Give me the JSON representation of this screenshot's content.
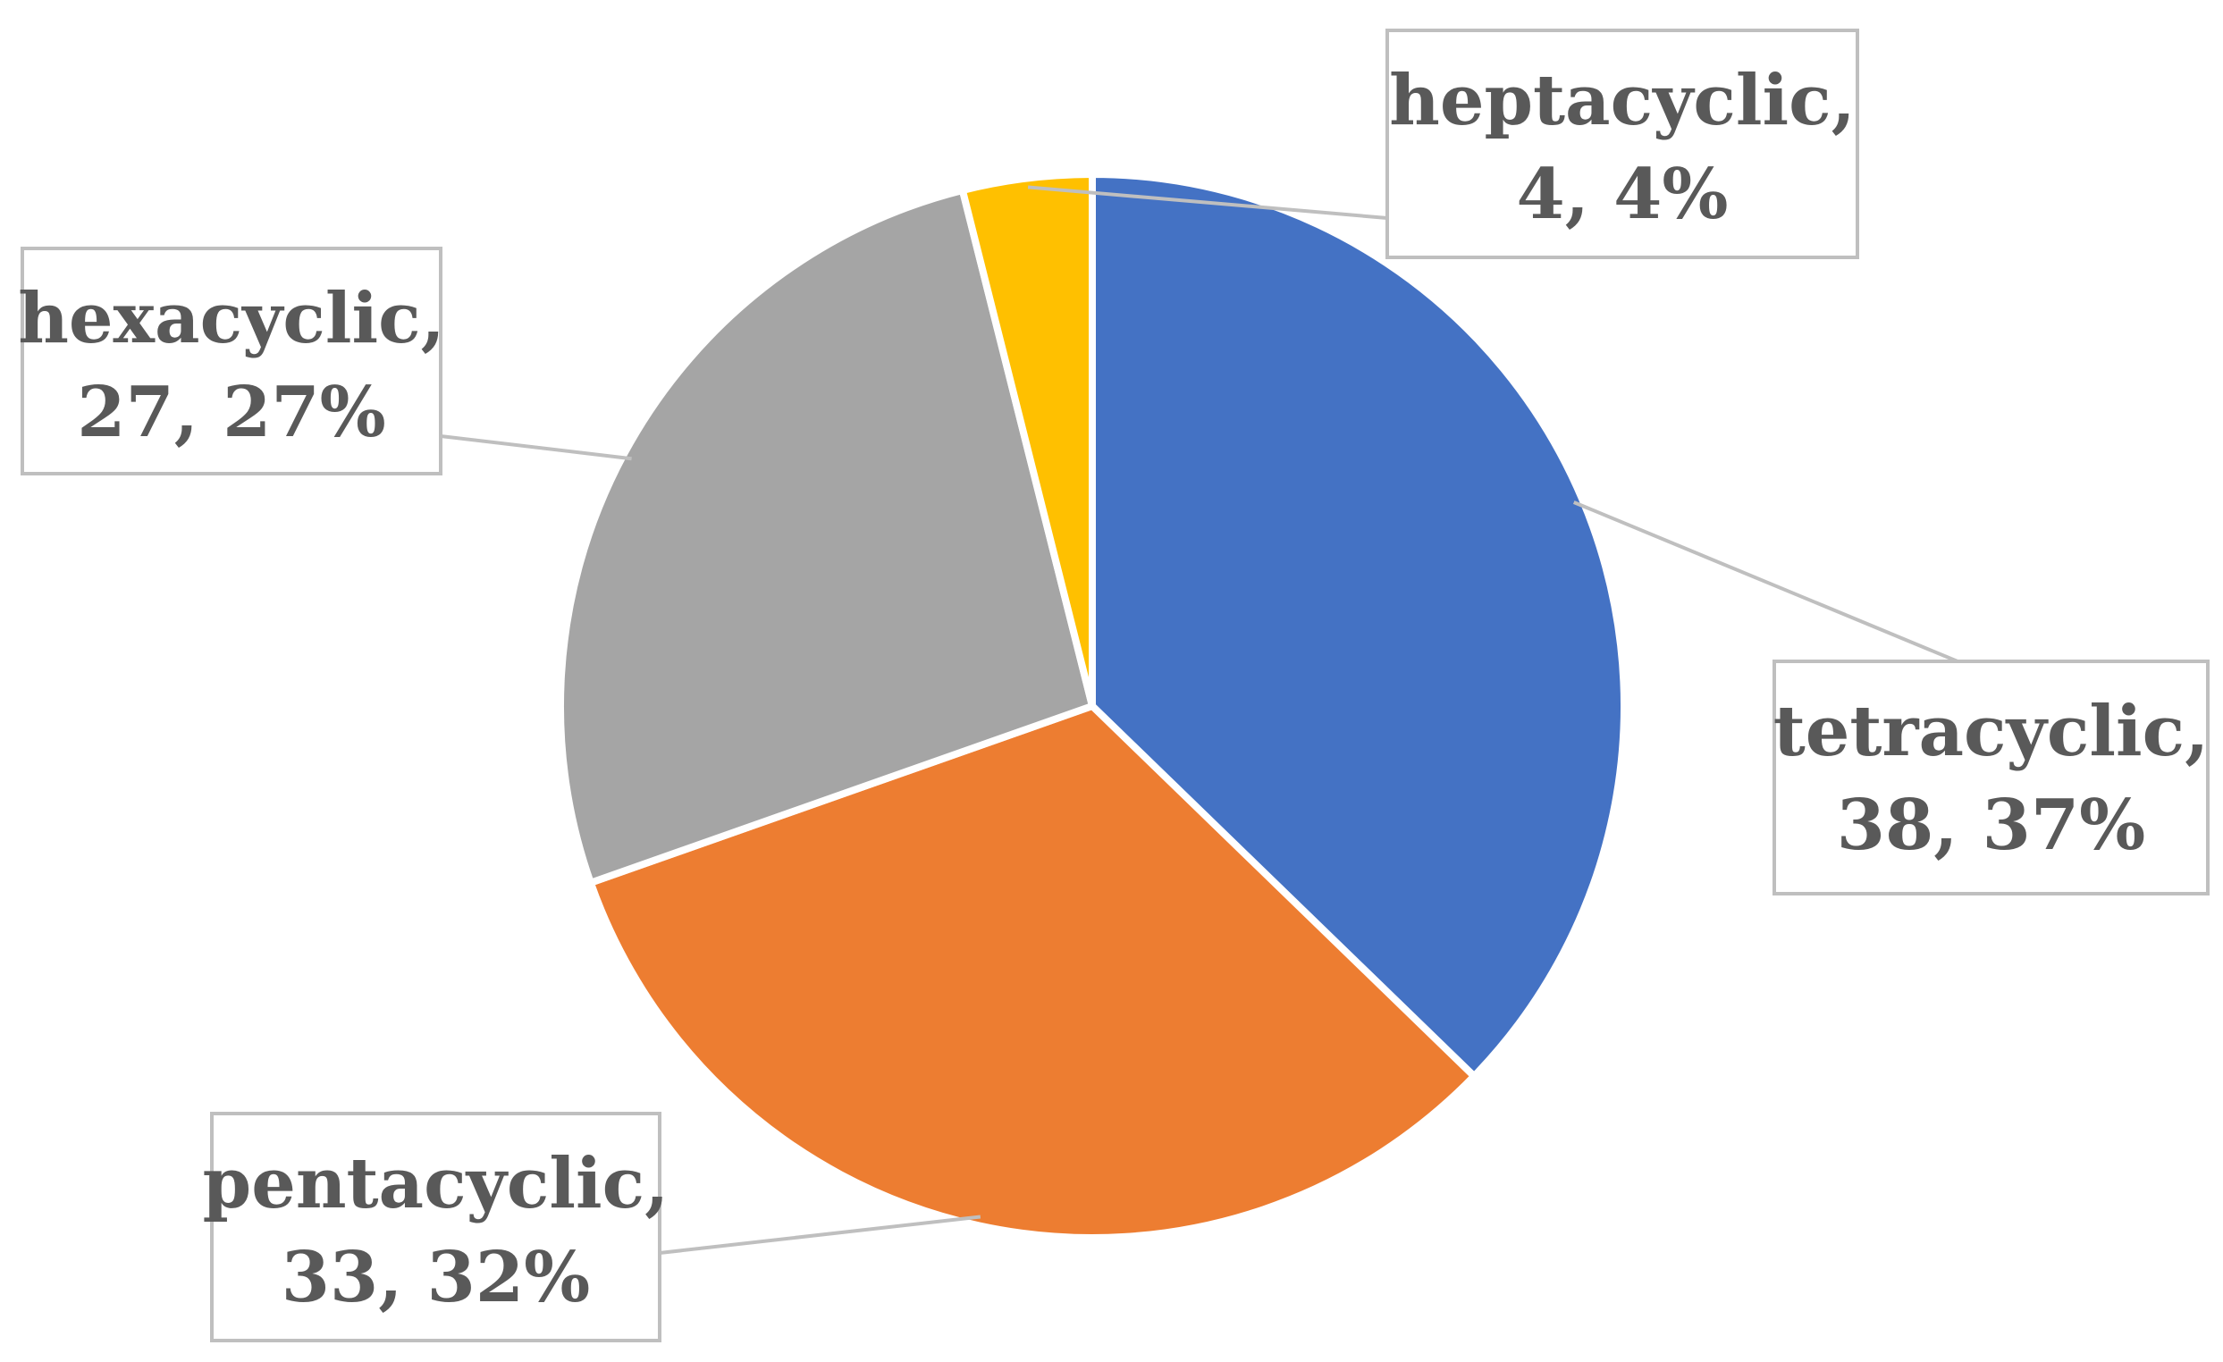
{
  "chart_data": {
    "type": "pie",
    "title": "",
    "slices": [
      {
        "name": "tetracyclic",
        "value": 38,
        "percent": "37%",
        "color": "#4472C4",
        "label_line1": "tetracyclic,",
        "label_line2": "38, 37%"
      },
      {
        "name": "pentacyclic",
        "value": 33,
        "percent": "32%",
        "color": "#ED7D31",
        "label_line1": "pentacyclic,",
        "label_line2": "33, 32%"
      },
      {
        "name": "hexacyclic",
        "value": 27,
        "percent": "27%",
        "color": "#A5A5A5",
        "label_line1": "hexacyclic,",
        "label_line2": "27, 27%"
      },
      {
        "name": "heptacyclic",
        "value": 4,
        "percent": "4%",
        "color": "#FFC000",
        "label_line1": "heptacyclic,",
        "label_line2": "4, 4%"
      }
    ]
  }
}
